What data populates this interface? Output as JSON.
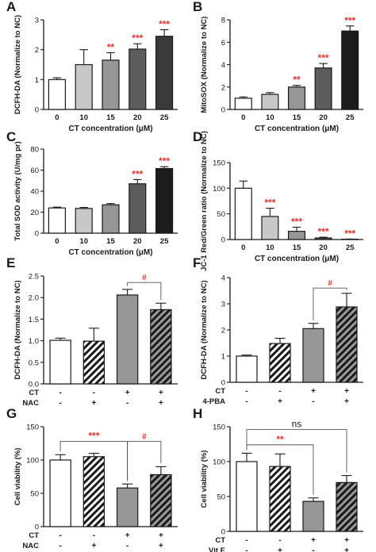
{
  "figure": {
    "panels": [
      "A",
      "B",
      "C",
      "D",
      "E",
      "F",
      "G",
      "H"
    ]
  },
  "colors": {
    "sig": "#e8312f",
    "axis": "#1a1a1a",
    "gray_light": "#c8c8c8",
    "gray_mid": "#969696",
    "gray_dark": "#5c5c5c",
    "gray_darker": "#3a3a3a",
    "black": "#1c1c1c"
  },
  "chart_data": [
    {
      "panel": "A",
      "type": "bar",
      "categories": [
        "0",
        "10",
        "15",
        "20",
        "25"
      ],
      "values": [
        1.0,
        1.5,
        1.65,
        2.02,
        2.45
      ],
      "errors": [
        0.06,
        0.5,
        0.25,
        0.18,
        0.22
      ],
      "fills": [
        "white",
        "gray_light",
        "gray_mid",
        "gray_dark",
        "gray_darker"
      ],
      "stars": [
        "",
        "",
        "**",
        "***",
        "***"
      ],
      "xlabel": "CT concentration (μM)",
      "ylabel": "DCFH-DA (Normalize to NC)",
      "ylim": [
        0,
        3
      ],
      "yticks": [
        0,
        1,
        2,
        3
      ]
    },
    {
      "panel": "B",
      "type": "bar",
      "categories": [
        "0",
        "10",
        "15",
        "20",
        "25"
      ],
      "values": [
        1.0,
        1.35,
        2.0,
        3.7,
        7.0
      ],
      "errors": [
        0.12,
        0.15,
        0.15,
        0.4,
        0.45
      ],
      "fills": [
        "white",
        "gray_light",
        "gray_mid",
        "gray_dark",
        "black"
      ],
      "stars": [
        "",
        "",
        "**",
        "***",
        "***"
      ],
      "xlabel": "CT concentration (μM)",
      "ylabel": "MitoSOX (Normalize to NC)",
      "ylim": [
        0,
        8
      ],
      "yticks": [
        0,
        2,
        4,
        6,
        8
      ]
    },
    {
      "panel": "C",
      "type": "bar",
      "categories": [
        "0",
        "10",
        "15",
        "20",
        "25"
      ],
      "values": [
        24,
        23.5,
        27,
        47,
        61.5
      ],
      "errors": [
        0.8,
        1.0,
        1.2,
        4.0,
        1.8
      ],
      "fills": [
        "white",
        "gray_light",
        "gray_mid",
        "gray_dark",
        "black"
      ],
      "stars": [
        "",
        "",
        "",
        "***",
        "***"
      ],
      "xlabel": "CT concentration (μM)",
      "ylabel": "Total SOD activity (U/mg pr)",
      "ylim": [
        0,
        80
      ],
      "yticks": [
        0,
        20,
        40,
        60,
        80
      ]
    },
    {
      "panel": "D",
      "type": "bar",
      "categories": [
        "0",
        "10",
        "15",
        "20",
        "25"
      ],
      "values": [
        100,
        45,
        16,
        3,
        0.6
      ],
      "errors": [
        14,
        16,
        8,
        1.5,
        0.4
      ],
      "fills": [
        "white",
        "gray_light",
        "gray_mid",
        "gray_dark",
        "black"
      ],
      "stars": [
        "",
        "***",
        "***",
        "***",
        "***"
      ],
      "xlabel": "CT concentration (μM)",
      "ylabel": "JC-1 Red/Green ratio (Normalize to NC)",
      "ylim": [
        0,
        150
      ],
      "yticks": [
        0,
        50,
        100,
        150
      ]
    },
    {
      "panel": "E",
      "type": "bar",
      "categories": [
        "NC",
        "NAC",
        "CT",
        "CT+NAC"
      ],
      "values": [
        1.01,
        0.99,
        2.06,
        1.72
      ],
      "errors": [
        0.05,
        0.3,
        0.13,
        0.15
      ],
      "fills": [
        "white",
        "hatch",
        "gray_mid",
        "hatch_dark"
      ],
      "ylabel": "DCFH-DA (Normalize to NC)",
      "ylim": [
        0,
        2.5
      ],
      "yticks": [
        "0.0",
        "0.5",
        "1.0",
        "1.5",
        "2.0",
        "2.5"
      ],
      "conditions": [
        {
          "label": "CT",
          "signs": [
            "-",
            "-",
            "+",
            "+"
          ]
        },
        {
          "label": "NAC",
          "signs": [
            "-",
            "+",
            "-",
            "+"
          ]
        }
      ],
      "brackets": [
        {
          "from": 2,
          "to": 3,
          "label": "#",
          "y": 2.35,
          "color": "sig"
        }
      ]
    },
    {
      "panel": "F",
      "type": "bar",
      "categories": [
        "NC",
        "4-PBA",
        "CT",
        "CT+4-PBA"
      ],
      "values": [
        1.0,
        1.48,
        2.05,
        2.88
      ],
      "errors": [
        0.04,
        0.2,
        0.2,
        0.52
      ],
      "fills": [
        "white",
        "hatch",
        "gray_mid",
        "hatch_dark"
      ],
      "ylabel": "DCFH-DA (Normalize to NC)",
      "ylim": [
        0,
        4
      ],
      "yticks": [
        0,
        1,
        2,
        3,
        4
      ],
      "conditions": [
        {
          "label": "CT",
          "signs": [
            "-",
            "-",
            "+",
            "+"
          ]
        },
        {
          "label": "4-PBA",
          "signs": [
            "-",
            "+",
            "-",
            "+"
          ]
        }
      ],
      "brackets": [
        {
          "from": 2,
          "to": 3,
          "label": "#",
          "y": 3.6,
          "color": "sig"
        }
      ]
    },
    {
      "panel": "G",
      "type": "bar",
      "categories": [
        "NC",
        "NAC",
        "CT",
        "CT+NAC"
      ],
      "values": [
        100,
        105,
        58,
        78
      ],
      "errors": [
        8,
        5,
        6,
        12
      ],
      "fills": [
        "white",
        "hatch",
        "gray_mid",
        "hatch_dark"
      ],
      "ylabel": "Cell viability (%)",
      "ylim": [
        0,
        150
      ],
      "yticks": [
        0,
        50,
        100,
        150
      ],
      "conditions": [
        {
          "label": "CT",
          "signs": [
            "-",
            "-",
            "+",
            "+"
          ]
        },
        {
          "label": "NAC",
          "signs": [
            "-",
            "+",
            "-",
            "+"
          ]
        }
      ],
      "brackets": [
        {
          "from": 0,
          "to": 2,
          "label": "***",
          "y": 128,
          "color": "sig"
        },
        {
          "from": 2,
          "to": 3,
          "label": "#",
          "y": 128,
          "color": "sig"
        }
      ]
    },
    {
      "panel": "H",
      "type": "bar",
      "categories": [
        "NC",
        "Vit E",
        "CT",
        "CT+Vit E"
      ],
      "values": [
        100,
        93,
        43,
        70
      ],
      "errors": [
        12,
        18,
        5,
        10
      ],
      "fills": [
        "white",
        "hatch",
        "gray_mid",
        "hatch_dark"
      ],
      "ylabel": "Cell viability (%)",
      "ylim": [
        0,
        150
      ],
      "yticks": [
        0,
        50,
        100,
        150
      ],
      "conditions": [
        {
          "label": "CT",
          "signs": [
            "-",
            "-",
            "+",
            "+"
          ]
        },
        {
          "label": "Vit E",
          "signs": [
            "-",
            "+",
            "-",
            "+"
          ]
        }
      ],
      "brackets": [
        {
          "from": 0,
          "to": 3,
          "label": "ns",
          "y": 146,
          "color": "axis"
        },
        {
          "from": 0,
          "to": 2,
          "label": "**",
          "y": 124,
          "color": "sig"
        }
      ]
    }
  ]
}
